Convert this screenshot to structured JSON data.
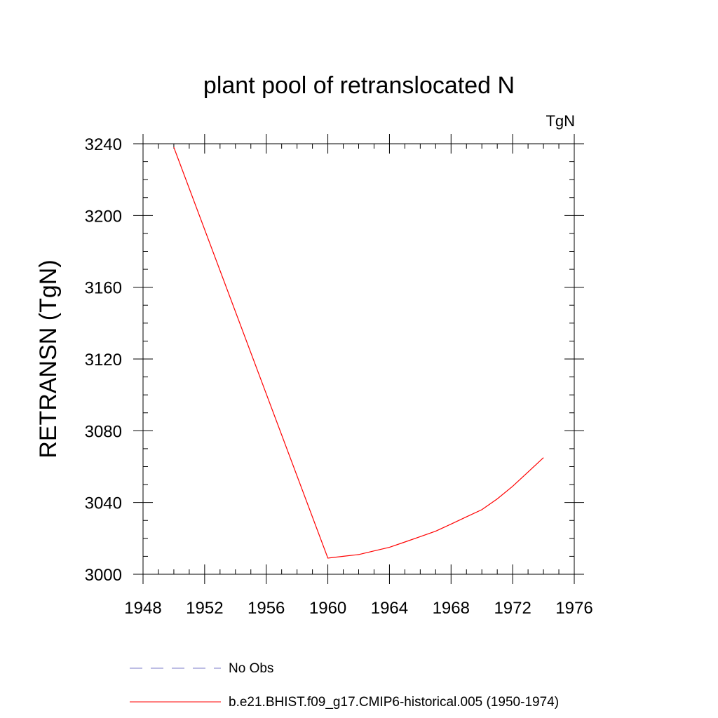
{
  "chart_data": {
    "type": "line",
    "title": "plant pool of retranslocated N",
    "units_label": "TgN",
    "xlabel": "",
    "ylabel": "RETRANSN  (TgN)",
    "xlim": [
      1948,
      1976
    ],
    "ylim": [
      3000,
      3240
    ],
    "xticks": [
      1948,
      1952,
      1956,
      1960,
      1964,
      1968,
      1972,
      1976
    ],
    "yticks": [
      3000,
      3040,
      3080,
      3120,
      3160,
      3200,
      3240
    ],
    "xminor_step": 1,
    "yminor_step": 10,
    "colors": {
      "model": "#ff0000",
      "obs": "#7b7bc8"
    },
    "series": [
      {
        "name": "b.e21.BHIST.f09_g17.CMIP6-historical.005 (1950-1974)",
        "style": "solid",
        "x": [
          1950,
          1960,
          1961,
          1962,
          1963,
          1964,
          1965,
          1966,
          1967,
          1968,
          1969,
          1970,
          1971,
          1972,
          1973,
          1974
        ],
        "values": [
          3238,
          3009,
          3010,
          3011,
          3013,
          3015,
          3018,
          3021,
          3024,
          3028,
          3032,
          3036,
          3042,
          3049,
          3057,
          3065
        ]
      }
    ],
    "legend": [
      {
        "label": "No Obs",
        "style": "dashed"
      },
      {
        "label": "b.e21.BHIST.f09_g17.CMIP6-historical.005 (1950-1974)",
        "style": "solid"
      }
    ]
  }
}
